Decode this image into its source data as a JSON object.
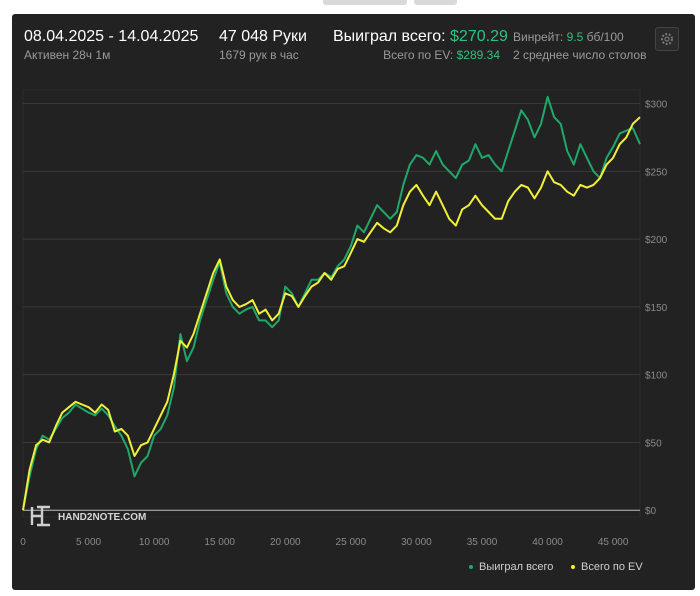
{
  "header": {
    "date_range": "08.04.2025 - 14.04.2025",
    "active_time": "Активен 28ч 1м",
    "hands": "47 048 Руки",
    "hands_per_hour": "1679 рук в час",
    "won_label": "Выиграл всего:",
    "won_value": "$270.29",
    "ev_label": "Всего по EV:",
    "ev_value": "$289.34",
    "winrate_label": "Винрейт:",
    "winrate_value": "9.5",
    "winrate_unit": "бб/100",
    "tables_text": "2 среднее число столов"
  },
  "watermark": "HAND2NOTE.COM",
  "colors": {
    "background": "#222222",
    "won_line": "#1fa86a",
    "ev_line": "#f2ef3a",
    "accent_green": "#2ec27e"
  },
  "chart_data": {
    "type": "line",
    "x_ticks": [
      "0",
      "5 000",
      "10 000",
      "15 000",
      "20 000",
      "25 000",
      "30 000",
      "35 000",
      "40 000",
      "45 000"
    ],
    "x_tick_values": [
      0,
      5000,
      10000,
      15000,
      20000,
      25000,
      30000,
      35000,
      40000,
      45000
    ],
    "y_ticks": [
      "$0",
      "$50",
      "$100",
      "$150",
      "$200",
      "$250",
      "$300"
    ],
    "y_tick_values": [
      0,
      50,
      100,
      150,
      200,
      250,
      300
    ],
    "xlim": [
      0,
      47048
    ],
    "ylim": [
      -5,
      310
    ],
    "grid": true,
    "legend_position": "bottom-right",
    "series": [
      {
        "name": "Выиграл всего",
        "color": "#1fa86a",
        "x": [
          0,
          500,
          1000,
          1500,
          2000,
          2500,
          3000,
          3500,
          4000,
          4500,
          5000,
          5500,
          6000,
          6500,
          7000,
          7500,
          8000,
          8500,
          9000,
          9500,
          10000,
          10500,
          11000,
          11500,
          12000,
          12500,
          13000,
          13500,
          14000,
          14500,
          15000,
          15500,
          16000,
          16500,
          17000,
          17500,
          18000,
          18500,
          19000,
          19500,
          20000,
          20500,
          21000,
          21500,
          22000,
          22500,
          23000,
          23500,
          24000,
          24500,
          25000,
          25500,
          26000,
          26500,
          27000,
          27500,
          28000,
          28500,
          29000,
          29500,
          30000,
          30500,
          31000,
          31500,
          32000,
          32500,
          33000,
          33500,
          34000,
          34500,
          35000,
          35500,
          36000,
          36500,
          37000,
          37500,
          38000,
          38500,
          39000,
          39500,
          40000,
          40500,
          41000,
          41500,
          42000,
          42500,
          43000,
          43500,
          44000,
          44500,
          45000,
          45500,
          46000,
          46500,
          47048
        ],
        "y": [
          0,
          25,
          45,
          55,
          52,
          60,
          68,
          72,
          78,
          75,
          72,
          70,
          75,
          70,
          62,
          55,
          45,
          25,
          35,
          40,
          55,
          60,
          70,
          90,
          130,
          110,
          120,
          140,
          155,
          170,
          183,
          160,
          150,
          145,
          148,
          150,
          140,
          140,
          135,
          140,
          165,
          160,
          150,
          160,
          170,
          170,
          175,
          172,
          180,
          185,
          195,
          210,
          205,
          215,
          225,
          220,
          215,
          220,
          240,
          255,
          262,
          260,
          255,
          265,
          255,
          250,
          245,
          255,
          258,
          270,
          260,
          262,
          255,
          250,
          265,
          280,
          295,
          288,
          275,
          285,
          305,
          290,
          285,
          265,
          255,
          270,
          260,
          250,
          245,
          260,
          268,
          278,
          280,
          282,
          270
        ]
      },
      {
        "name": "Всего по EV",
        "color": "#f2ef3a",
        "x": [
          0,
          500,
          1000,
          1500,
          2000,
          2500,
          3000,
          3500,
          4000,
          4500,
          5000,
          5500,
          6000,
          6500,
          7000,
          7500,
          8000,
          8500,
          9000,
          9500,
          10000,
          10500,
          11000,
          11500,
          12000,
          12500,
          13000,
          13500,
          14000,
          14500,
          15000,
          15500,
          16000,
          16500,
          17000,
          17500,
          18000,
          18500,
          19000,
          19500,
          20000,
          20500,
          21000,
          21500,
          22000,
          22500,
          23000,
          23500,
          24000,
          24500,
          25000,
          25500,
          26000,
          26500,
          27000,
          27500,
          28000,
          28500,
          29000,
          29500,
          30000,
          30500,
          31000,
          31500,
          32000,
          32500,
          33000,
          33500,
          34000,
          34500,
          35000,
          35500,
          36000,
          36500,
          37000,
          37500,
          38000,
          38500,
          39000,
          39500,
          40000,
          40500,
          41000,
          41500,
          42000,
          42500,
          43000,
          43500,
          44000,
          44500,
          45000,
          45500,
          46000,
          46500,
          47048
        ],
        "y": [
          0,
          30,
          48,
          52,
          50,
          62,
          72,
          76,
          80,
          78,
          76,
          72,
          78,
          74,
          58,
          60,
          55,
          40,
          48,
          50,
          60,
          70,
          80,
          100,
          125,
          120,
          130,
          145,
          160,
          175,
          185,
          165,
          155,
          150,
          152,
          155,
          145,
          148,
          140,
          145,
          160,
          158,
          150,
          158,
          165,
          168,
          175,
          170,
          178,
          180,
          190,
          200,
          198,
          205,
          212,
          208,
          205,
          210,
          225,
          235,
          240,
          232,
          225,
          235,
          225,
          215,
          210,
          222,
          225,
          232,
          225,
          220,
          215,
          215,
          228,
          235,
          240,
          238,
          230,
          238,
          250,
          242,
          240,
          235,
          232,
          240,
          238,
          240,
          245,
          255,
          260,
          270,
          275,
          285,
          290
        ]
      }
    ]
  }
}
